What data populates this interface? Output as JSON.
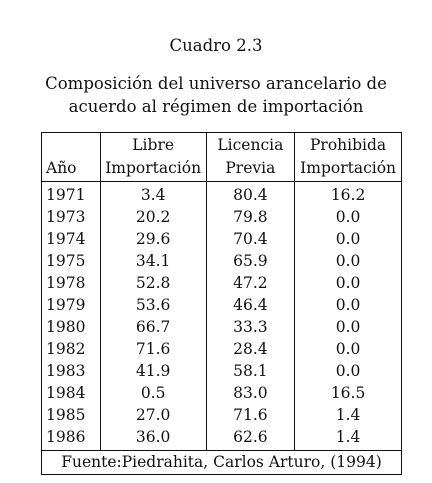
{
  "caption": {
    "title": "Cuadro 2.3",
    "line1": "Composición del universo arancelario de",
    "line2": "acuerdo al régimen de importación"
  },
  "table": {
    "headers": {
      "year": [
        "",
        "Año"
      ],
      "libre": [
        "Libre",
        "Importación"
      ],
      "licencia": [
        "Licencia",
        "Previa"
      ],
      "prohibida": [
        "Prohibida",
        "Importación"
      ]
    },
    "rows": [
      {
        "year": "1971",
        "libre": "3.4",
        "licencia": "80.4",
        "prohibida": "16.2"
      },
      {
        "year": "1973",
        "libre": "20.2",
        "licencia": "79.8",
        "prohibida": "0.0"
      },
      {
        "year": "1974",
        "libre": "29.6",
        "licencia": "70.4",
        "prohibida": "0.0"
      },
      {
        "year": "1975",
        "libre": "34.1",
        "licencia": "65.9",
        "prohibida": "0.0"
      },
      {
        "year": "1978",
        "libre": "52.8",
        "licencia": "47.2",
        "prohibida": "0.0"
      },
      {
        "year": "1979",
        "libre": "53.6",
        "licencia": "46.4",
        "prohibida": "0.0"
      },
      {
        "year": "1980",
        "libre": "66.7",
        "licencia": "33.3",
        "prohibida": "0.0"
      },
      {
        "year": "1982",
        "libre": "71.6",
        "licencia": "28.4",
        "prohibida": "0.0"
      },
      {
        "year": "1983",
        "libre": "41.9",
        "licencia": "58.1",
        "prohibida": "0.0"
      },
      {
        "year": "1984",
        "libre": "0.5",
        "licencia": "83.0",
        "prohibida": "16.5"
      },
      {
        "year": "1985",
        "libre": "27.0",
        "licencia": "71.6",
        "prohibida": "1.4"
      },
      {
        "year": "1986",
        "libre": "36.0",
        "licencia": "62.6",
        "prohibida": "1.4"
      }
    ],
    "source": "Fuente:Piedrahita, Carlos Arturo, (1994)"
  }
}
